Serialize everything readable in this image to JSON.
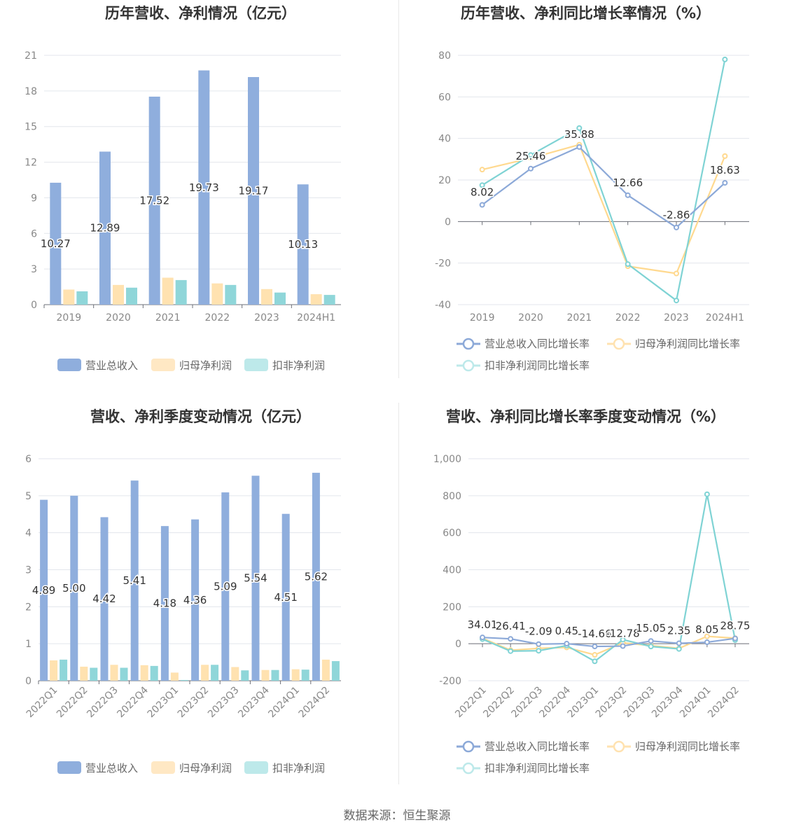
{
  "footer": {
    "source": "数据来源：恒生聚源"
  },
  "colors": {
    "revenue": "#8faedd",
    "net_profit": "#ffe2b0",
    "deducted_profit": "#8fd6d9",
    "line_revenue": "#8ca9d8",
    "line_net": "#ffd98f",
    "line_deducted": "#7fd3d4"
  },
  "chart_data": [
    {
      "id": "annual_amount",
      "type": "bar",
      "title": "历年营收、净利情况（亿元）",
      "categories": [
        "2019",
        "2020",
        "2021",
        "2022",
        "2023",
        "2024H1"
      ],
      "ylim": [
        0,
        21
      ],
      "yticks": [
        0,
        3,
        6,
        9,
        12,
        15,
        18,
        21
      ],
      "grid": true,
      "legend_position": "bottom",
      "series": [
        {
          "name": "营业总收入",
          "values": [
            10.27,
            12.89,
            17.52,
            19.73,
            19.17,
            10.13
          ],
          "labels": [
            "10.27",
            "12.89",
            "17.52",
            "19.73",
            "19.17",
            "10.13"
          ]
        },
        {
          "name": "归母净利润",
          "values": [
            1.27,
            1.66,
            2.27,
            1.79,
            1.31,
            0.88
          ]
        },
        {
          "name": "扣非净利润",
          "values": [
            1.12,
            1.43,
            2.07,
            1.66,
            1.02,
            0.82
          ]
        }
      ]
    },
    {
      "id": "annual_growth",
      "type": "line",
      "title": "历年营收、净利同比增长率情况（%）",
      "categories": [
        "2019",
        "2020",
        "2021",
        "2022",
        "2023",
        "2024H1"
      ],
      "ylim": [
        -40,
        80
      ],
      "yticks": [
        -40,
        -20,
        0,
        20,
        40,
        60,
        80
      ],
      "grid": true,
      "legend_position": "bottom",
      "series": [
        {
          "name": "营业总收入同比增长率",
          "values": [
            8.02,
            25.46,
            35.88,
            12.66,
            -2.86,
            18.63
          ],
          "labels": [
            "8.02",
            "25.46",
            "35.88",
            "12.66",
            "-2.86",
            "18.63"
          ]
        },
        {
          "name": "归母净利润同比增长率",
          "values": [
            25.0,
            30.5,
            37.0,
            -21.5,
            -25.0,
            31.5
          ]
        },
        {
          "name": "扣非净利润同比增长率",
          "values": [
            17.5,
            32.0,
            45.0,
            -20.5,
            -38.0,
            78.0
          ]
        }
      ]
    },
    {
      "id": "quarterly_amount",
      "type": "bar",
      "title": "营收、净利季度变动情况（亿元）",
      "categories": [
        "2022Q1",
        "2022Q2",
        "2022Q3",
        "2022Q4",
        "2023Q1",
        "2023Q2",
        "2023Q3",
        "2023Q4",
        "2024Q1",
        "2024Q2"
      ],
      "ylim": [
        0,
        6
      ],
      "yticks": [
        0,
        1,
        2,
        3,
        4,
        5,
        6
      ],
      "grid": true,
      "legend_position": "bottom",
      "series": [
        {
          "name": "营业总收入",
          "values": [
            4.89,
            5.0,
            4.42,
            5.41,
            4.18,
            4.36,
            5.09,
            5.54,
            4.51,
            5.62
          ],
          "labels": [
            "4.89",
            "5.00",
            "4.42",
            "5.41",
            "4.18",
            "4.36",
            "5.09",
            "5.54",
            "4.51",
            "5.62"
          ]
        },
        {
          "name": "归母净利润",
          "values": [
            0.55,
            0.38,
            0.43,
            0.42,
            0.22,
            0.43,
            0.37,
            0.29,
            0.31,
            0.57
          ]
        },
        {
          "name": "扣非净利润",
          "values": [
            0.57,
            0.35,
            0.35,
            0.4,
            0.02,
            0.43,
            0.28,
            0.29,
            0.3,
            0.53
          ]
        }
      ]
    },
    {
      "id": "quarterly_growth",
      "type": "line",
      "title": "营收、净利同比增长率季度变动情况（%）",
      "categories": [
        "2022Q1",
        "2022Q2",
        "2022Q3",
        "2022Q4",
        "2023Q1",
        "2023Q2",
        "2023Q3",
        "2023Q4",
        "2024Q1",
        "2024Q2"
      ],
      "ylim": [
        -200,
        1000
      ],
      "yticks": [
        -200,
        0,
        200,
        400,
        600,
        800,
        1000
      ],
      "ytick_labels": [
        "-200",
        "0",
        "200",
        "400",
        "600",
        "800",
        "1,000"
      ],
      "grid": true,
      "legend_position": "bottom",
      "series": [
        {
          "name": "营业总收入同比增长率",
          "values": [
            34.01,
            26.41,
            -2.09,
            0.45,
            -14.66,
            -12.78,
            15.05,
            2.35,
            8.05,
            28.75
          ],
          "labels": [
            "34.01",
            "26.41",
            "-2.09",
            "0.45",
            "-14.66",
            "-12.78",
            "15.05",
            "2.35",
            "8.05",
            "28.75"
          ]
        },
        {
          "name": "归母净利润同比增长率",
          "values": [
            30,
            -35,
            -25,
            -20,
            -60,
            5,
            -10,
            -25,
            40,
            30
          ]
        },
        {
          "name": "扣非净利润同比增长率",
          "values": [
            25,
            -40,
            -38,
            -10,
            -95,
            22,
            -15,
            -28,
            808,
            20
          ]
        }
      ]
    }
  ]
}
